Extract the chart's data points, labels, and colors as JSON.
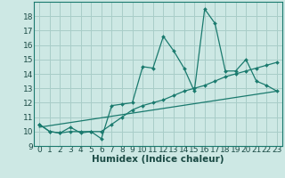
{
  "xlabel": "Humidex (Indice chaleur)",
  "background_color": "#cde8e4",
  "grid_color": "#a8cdc8",
  "line_color": "#1a7a6e",
  "xlim": [
    -0.5,
    23.5
  ],
  "ylim": [
    9,
    19
  ],
  "yticks": [
    9,
    10,
    11,
    12,
    13,
    14,
    15,
    16,
    17,
    18
  ],
  "xticks": [
    0,
    1,
    2,
    3,
    4,
    5,
    6,
    7,
    8,
    9,
    10,
    11,
    12,
    13,
    14,
    15,
    16,
    17,
    18,
    19,
    20,
    21,
    22,
    23
  ],
  "series1_x": [
    0,
    1,
    2,
    3,
    4,
    5,
    6,
    7,
    8,
    9,
    10,
    11,
    12,
    13,
    14,
    15,
    16,
    17,
    18,
    19,
    20,
    21,
    22,
    23
  ],
  "series1_y": [
    10.5,
    10.0,
    9.9,
    10.3,
    9.9,
    10.0,
    9.5,
    11.8,
    11.9,
    12.0,
    14.5,
    14.4,
    16.6,
    15.6,
    14.4,
    12.8,
    18.5,
    17.5,
    14.2,
    14.2,
    15.0,
    13.5,
    13.2,
    12.8
  ],
  "series2_x": [
    0,
    1,
    2,
    3,
    4,
    5,
    6,
    7,
    8,
    9,
    10,
    11,
    12,
    13,
    14,
    15,
    16,
    17,
    18,
    19,
    20,
    21,
    22,
    23
  ],
  "series2_y": [
    10.5,
    10.0,
    9.9,
    10.0,
    10.0,
    10.0,
    10.0,
    10.5,
    11.0,
    11.5,
    11.8,
    12.0,
    12.2,
    12.5,
    12.8,
    13.0,
    13.2,
    13.5,
    13.8,
    14.0,
    14.2,
    14.4,
    14.6,
    14.8
  ],
  "series3_x": [
    0,
    23
  ],
  "series3_y": [
    10.3,
    12.8
  ],
  "tick_fontsize": 6.5,
  "xlabel_fontsize": 7.5,
  "marker_size": 2.0,
  "line_width": 0.9
}
